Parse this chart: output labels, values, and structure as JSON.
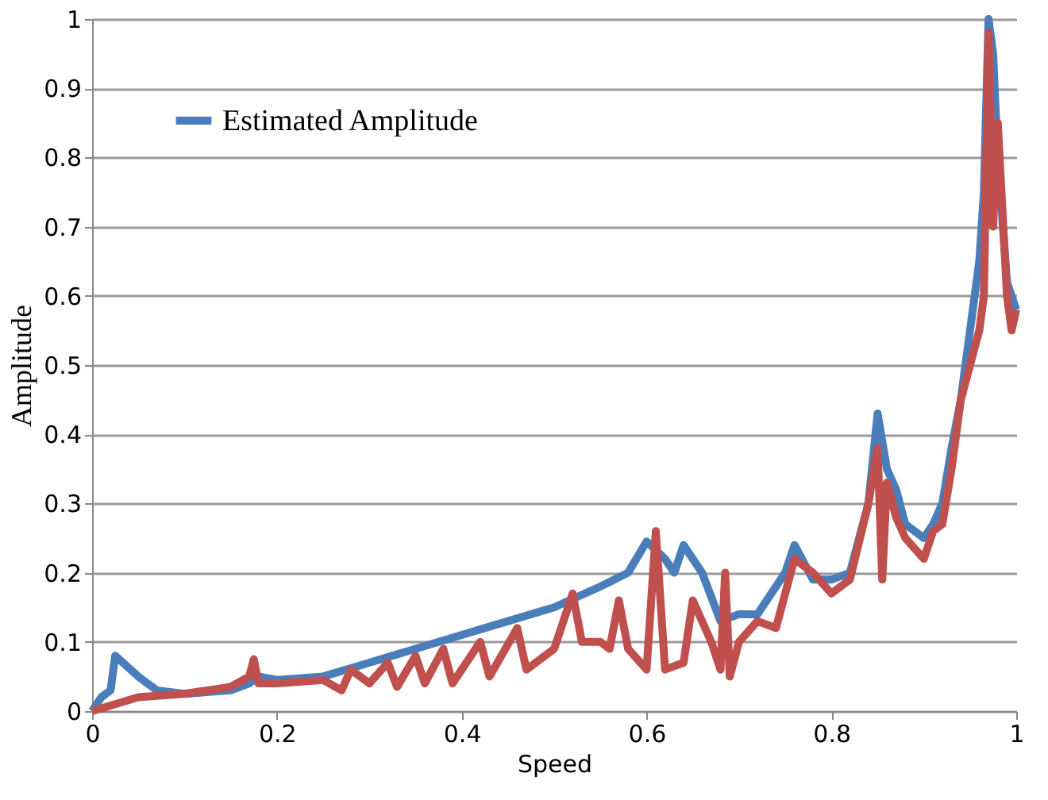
{
  "chart_data": {
    "type": "line",
    "xlabel": "Speed",
    "ylabel": "Amplitude",
    "xlim": [
      0,
      1
    ],
    "xticks": [
      0,
      0.2,
      0.4,
      0.6,
      0.8,
      1
    ],
    "ylim": [
      0,
      1
    ],
    "yticks": [
      0,
      0.1,
      0.2,
      0.3,
      0.4,
      0.5,
      0.6,
      0.7,
      0.8,
      0.9,
      1
    ],
    "grid": "y",
    "legend": "top left",
    "marker": "none",
    "line_style": "solid",
    "series": [
      {
        "name": "Estimated Amplitude",
        "color": "#4a7ebb",
        "x": [
          0,
          0.01,
          0.02,
          0.025,
          0.05,
          0.07,
          0.1,
          0.15,
          0.17,
          0.18,
          0.2,
          0.25,
          0.3,
          0.35,
          0.4,
          0.45,
          0.5,
          0.55,
          0.58,
          0.6,
          0.62,
          0.63,
          0.64,
          0.66,
          0.68,
          0.7,
          0.72,
          0.75,
          0.76,
          0.78,
          0.8,
          0.82,
          0.84,
          0.85,
          0.86,
          0.87,
          0.88,
          0.9,
          0.91,
          0.92,
          0.93,
          0.94,
          0.95,
          0.96,
          0.965,
          0.97,
          0.975,
          0.98,
          0.99,
          1
        ],
        "values": [
          0,
          0.02,
          0.03,
          0.08,
          0.05,
          0.03,
          0.025,
          0.03,
          0.04,
          0.05,
          0.045,
          0.05,
          0.07,
          0.09,
          0.11,
          0.13,
          0.15,
          0.18,
          0.2,
          0.245,
          0.22,
          0.2,
          0.24,
          0.2,
          0.13,
          0.14,
          0.14,
          0.2,
          0.24,
          0.19,
          0.19,
          0.2,
          0.3,
          0.43,
          0.35,
          0.32,
          0.27,
          0.25,
          0.27,
          0.3,
          0.38,
          0.45,
          0.55,
          0.65,
          0.75,
          1,
          0.95,
          0.8,
          0.62,
          0.58
        ]
      },
      {
        "color": "#c0504d",
        "x": [
          0,
          0.05,
          0.1,
          0.15,
          0.17,
          0.175,
          0.18,
          0.2,
          0.25,
          0.27,
          0.28,
          0.3,
          0.32,
          0.33,
          0.35,
          0.36,
          0.38,
          0.39,
          0.42,
          0.43,
          0.46,
          0.47,
          0.5,
          0.52,
          0.53,
          0.55,
          0.56,
          0.57,
          0.58,
          0.6,
          0.61,
          0.62,
          0.64,
          0.65,
          0.67,
          0.68,
          0.685,
          0.69,
          0.7,
          0.72,
          0.74,
          0.76,
          0.78,
          0.8,
          0.82,
          0.84,
          0.85,
          0.855,
          0.86,
          0.87,
          0.88,
          0.9,
          0.91,
          0.92,
          0.93,
          0.94,
          0.95,
          0.96,
          0.965,
          0.97,
          0.975,
          0.98,
          0.99,
          0.995,
          1
        ],
        "values": [
          0,
          0.02,
          0.025,
          0.035,
          0.05,
          0.075,
          0.04,
          0.04,
          0.045,
          0.03,
          0.06,
          0.04,
          0.07,
          0.035,
          0.08,
          0.04,
          0.09,
          0.04,
          0.1,
          0.05,
          0.12,
          0.06,
          0.09,
          0.17,
          0.1,
          0.1,
          0.09,
          0.16,
          0.09,
          0.06,
          0.26,
          0.06,
          0.07,
          0.16,
          0.1,
          0.06,
          0.2,
          0.05,
          0.1,
          0.13,
          0.12,
          0.22,
          0.2,
          0.17,
          0.19,
          0.3,
          0.38,
          0.19,
          0.33,
          0.28,
          0.25,
          0.22,
          0.26,
          0.27,
          0.35,
          0.45,
          0.5,
          0.55,
          0.6,
          0.98,
          0.7,
          0.85,
          0.6,
          0.55,
          0.58
        ]
      }
    ]
  }
}
